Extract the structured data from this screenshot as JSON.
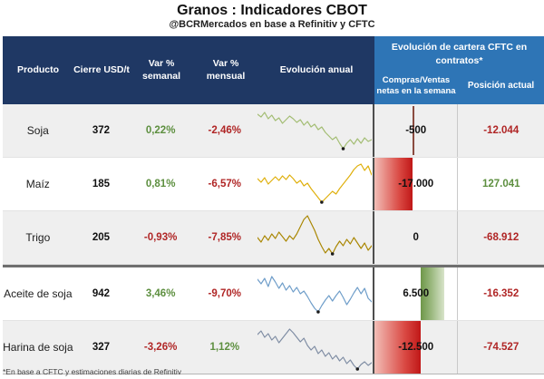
{
  "title": "Granos : Indicadores CBOT",
  "subtitle": "@BCRMercados en base a Refinitiv y CFTC",
  "footnote": "*En base a CFTC y estimaciones diarias de Refinitiv",
  "colors": {
    "navy": "#1f3864",
    "blue": "#2e75b6",
    "pos_green": "#5d8f3f",
    "neg_red": "#b02626",
    "bar_red": "#c01717",
    "bar_green": "#6e9749",
    "separator": "#6f6f6f"
  },
  "header": {
    "producto": "Producto",
    "cierre": "Cierre USD/t",
    "var_semanal": "Var % semanal",
    "var_mensual": "Var % mensual",
    "evolucion": "Evolución anual",
    "cftc_title": "Evolución de cartera CFTC en contratos*",
    "cftc_net": "Compras/Ventas netas en la semana",
    "cftc_pos": "Posición actual"
  },
  "rows": [
    {
      "producto": "Soja",
      "cierre": "372",
      "var_semanal": "0,22%",
      "var_semanal_dir": "up",
      "var_mensual": "-2,46%",
      "var_mensual_dir": "down",
      "net": "-500",
      "bar": {
        "kind": "axis",
        "pos_pct": 45.6
      },
      "posicion": "-12.044",
      "posicion_dir": "down",
      "spark_color": "#a3bd73",
      "marker": 24,
      "spark": [
        10,
        13,
        8,
        15,
        11,
        17,
        14,
        20,
        16,
        12,
        15,
        19,
        16,
        22,
        18,
        24,
        21,
        27,
        24,
        30,
        34,
        38,
        35,
        42,
        48,
        42,
        38,
        43,
        37,
        42,
        36,
        40,
        38
      ]
    },
    {
      "producto": "Maíz",
      "cierre": "185",
      "var_semanal": "0,81%",
      "var_semanal_dir": "up",
      "var_mensual": "-6,57%",
      "var_mensual_dir": "down",
      "net": "-17.000",
      "bar": {
        "kind": "neg",
        "from_pct": 0,
        "to_pct": 45.6
      },
      "posicion": "127.041",
      "posicion_dir": "up",
      "spark_color": "#dfaf0a",
      "marker": 18,
      "spark": [
        22,
        26,
        21,
        28,
        24,
        20,
        24,
        19,
        23,
        18,
        22,
        27,
        24,
        30,
        27,
        33,
        38,
        43,
        48,
        44,
        40,
        36,
        39,
        33,
        28,
        23,
        18,
        12,
        8,
        6,
        13,
        8,
        18
      ]
    },
    {
      "producto": "Trigo",
      "cierre": "205",
      "var_semanal": "-0,93%",
      "var_semanal_dir": "down",
      "var_mensual": "-7,85%",
      "var_mensual_dir": "down",
      "net": "0",
      "bar": {
        "kind": "none"
      },
      "posicion": "-68.912",
      "posicion_dir": "down",
      "spark_color": "#a98600",
      "marker": 21,
      "spark": [
        28,
        33,
        26,
        31,
        24,
        29,
        22,
        27,
        32,
        26,
        30,
        24,
        16,
        8,
        4,
        12,
        20,
        30,
        38,
        45,
        40,
        46,
        38,
        32,
        37,
        30,
        35,
        28,
        34,
        40,
        34,
        42,
        37
      ]
    },
    {
      "producto": "Aceite de soja",
      "cierre": "942",
      "var_semanal": "3,46%",
      "var_semanal_dir": "up",
      "var_mensual": "-9,70%",
      "var_mensual_dir": "down",
      "net": "6.500",
      "bar": {
        "kind": "pos",
        "from_pct": 55.4,
        "to_pct": 84.7
      },
      "posicion": "-16.352",
      "posicion_dir": "down",
      "spark_color": "#6e9dc9",
      "marker": 17,
      "spark": [
        12,
        17,
        11,
        20,
        9,
        15,
        22,
        16,
        24,
        19,
        26,
        21,
        28,
        25,
        31,
        38,
        44,
        48,
        41,
        35,
        30,
        36,
        30,
        25,
        32,
        40,
        34,
        27,
        21,
        28,
        22,
        33,
        37
      ]
    },
    {
      "producto": "Harina de soja",
      "cierre": "327",
      "var_semanal": "-3,26%",
      "var_semanal_dir": "down",
      "var_mensual": "1,12%",
      "var_mensual_dir": "up",
      "net": "-12.500",
      "bar": {
        "kind": "neg",
        "from_pct": 0,
        "to_pct": 55.4
      },
      "posicion": "-74.527",
      "posicion_dir": "down",
      "spark_color": "#7e8ca3",
      "marker": 28,
      "spark": [
        14,
        10,
        17,
        13,
        20,
        16,
        23,
        18,
        13,
        8,
        12,
        17,
        22,
        18,
        26,
        31,
        27,
        35,
        31,
        38,
        34,
        41,
        37,
        43,
        39,
        46,
        42,
        48,
        52,
        47,
        44,
        48,
        45
      ]
    }
  ],
  "chart_data": {
    "type": "table",
    "title": "Granos : Indicadores CBOT",
    "columns": [
      "Producto",
      "Cierre USD/t",
      "Var % semanal",
      "Var % mensual",
      "Evolución anual",
      "Compras/Ventas netas en la semana",
      "Posición actual"
    ],
    "products": [
      "Soja",
      "Maíz",
      "Trigo",
      "Aceite de soja",
      "Harina de soja"
    ],
    "cierre_usd_t": [
      372,
      185,
      205,
      942,
      327
    ],
    "var_semanal_pct": [
      0.22,
      0.81,
      -0.93,
      3.46,
      -3.26
    ],
    "var_mensual_pct": [
      -2.46,
      -6.57,
      -7.85,
      -9.7,
      1.12
    ],
    "cftc_net_semana": [
      -500,
      -17000,
      0,
      6500,
      -12500
    ],
    "cftc_posicion_actual": [
      -12044,
      127041,
      -68912,
      -16352,
      -74527
    ],
    "embedded_charts": "per-row line sparklines (Evolución anual) and horizontal data bars (CFTC net)"
  }
}
